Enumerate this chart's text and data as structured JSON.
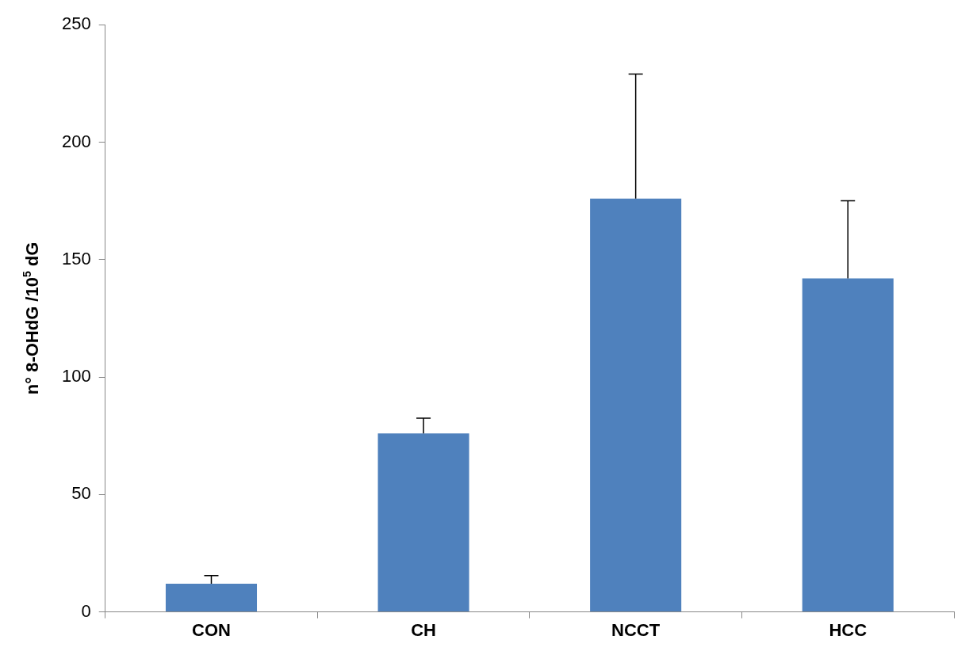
{
  "chart_data": {
    "type": "bar",
    "ylabel": "n° 8-OHdG /10$^{5}$ dG",
    "categories": [
      "CON",
      "CH",
      "NCCT",
      "HCC"
    ],
    "values": [
      12,
      76,
      176,
      142
    ],
    "errors": [
      [
        12,
        15.5
      ],
      [
        76,
        82.5
      ],
      [
        176,
        229
      ],
      [
        142,
        175
      ]
    ],
    "color": "#4f81bd",
    "ylim": [
      0,
      250
    ],
    "yticks": [
      0,
      50,
      100,
      150,
      200,
      250
    ],
    "grid": false,
    "legend": false
  }
}
